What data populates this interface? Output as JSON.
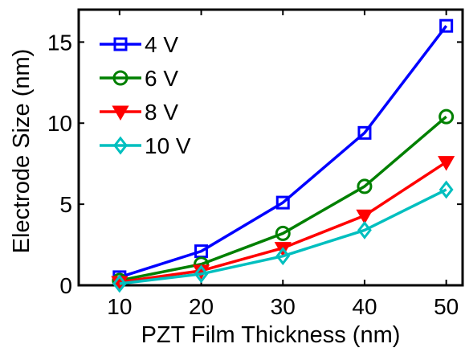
{
  "chart_data": {
    "type": "line",
    "xlabel": "PZT Film Thickness (nm)",
    "ylabel": "Electrode Size (nm)",
    "x": [
      10,
      20,
      30,
      40,
      50
    ],
    "xlim": [
      5,
      52
    ],
    "ylim": [
      0,
      17
    ],
    "xticks": [
      "10",
      "20",
      "30",
      "40",
      "50"
    ],
    "yticks": [
      "0",
      "5",
      "10",
      "15"
    ],
    "legend_position": "top-left",
    "grid": false,
    "series": [
      {
        "name": "4 V",
        "color": "#0000ff",
        "marker": "square",
        "values": [
          0.5,
          2.1,
          5.1,
          9.4,
          16.0
        ]
      },
      {
        "name": "6 V",
        "color": "#008000",
        "marker": "circle",
        "values": [
          0.3,
          1.3,
          3.2,
          6.1,
          10.4
        ]
      },
      {
        "name": "8 V",
        "color": "#ff0000",
        "marker": "triangle-down",
        "values": [
          0.2,
          0.9,
          2.3,
          4.3,
          7.6
        ]
      },
      {
        "name": "10 V",
        "color": "#00bfbf",
        "marker": "diamond",
        "values": [
          0.1,
          0.7,
          1.8,
          3.4,
          5.9
        ]
      }
    ]
  }
}
